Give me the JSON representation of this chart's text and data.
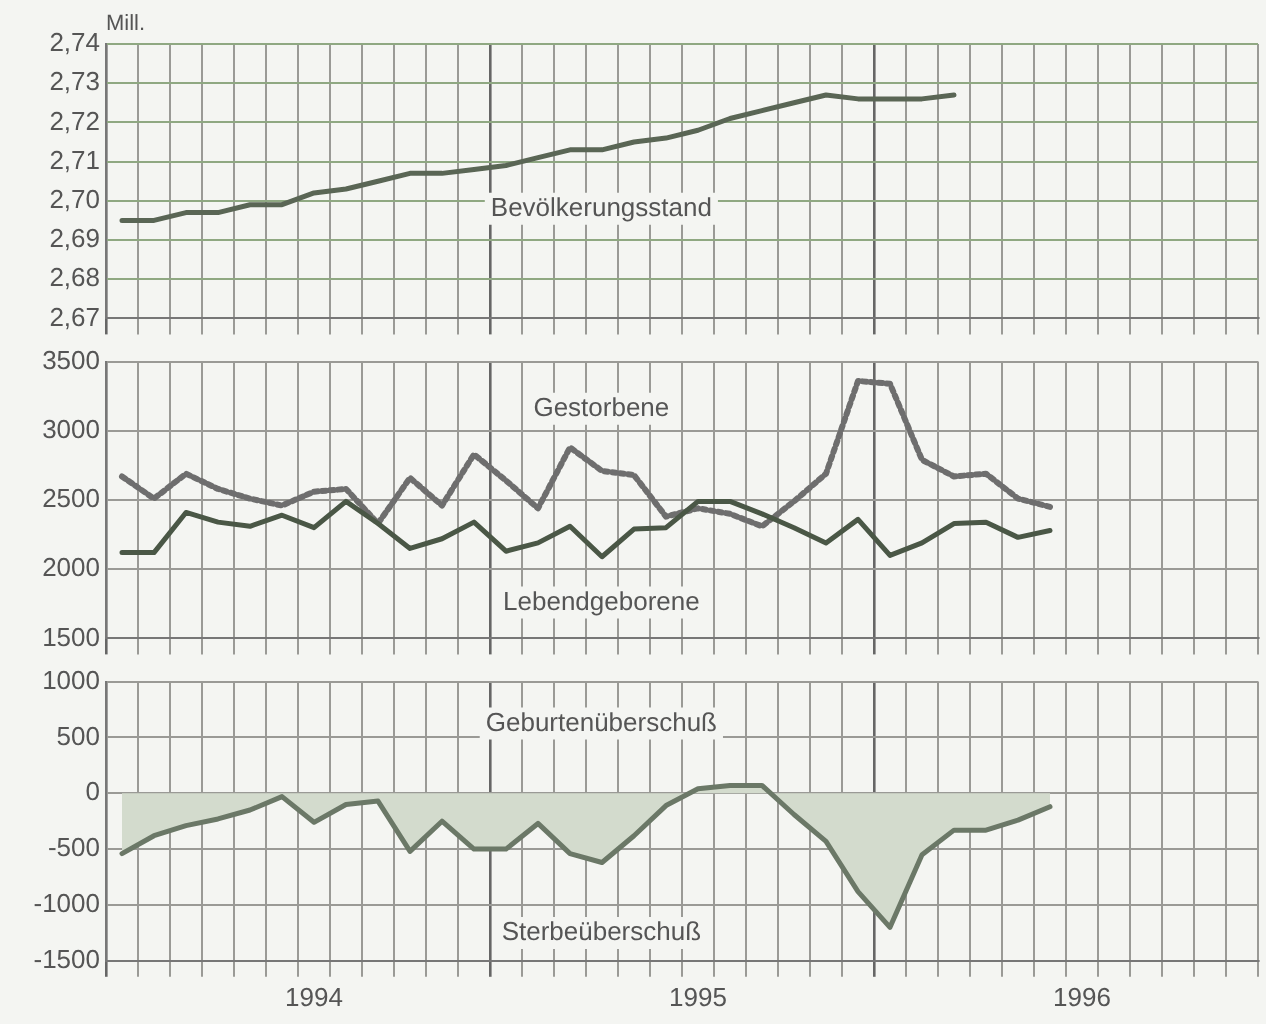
{
  "chart_data": [
    {
      "type": "line",
      "ylabel": "Mill.",
      "categories": [
        null,
        null,
        null,
        null,
        null,
        null,
        null,
        null,
        null,
        null,
        null,
        null,
        null,
        null,
        null,
        null,
        null,
        null,
        null,
        null,
        null,
        null,
        null,
        null,
        null,
        null,
        null,
        null,
        null,
        null,
        null,
        null,
        null,
        null,
        null,
        null
      ],
      "ylim": [
        2.67,
        2.74
      ],
      "yticks": [
        {
          "value": 2.67,
          "label": "2,67"
        },
        {
          "value": 2.68,
          "label": "2,68"
        },
        {
          "value": 2.69,
          "label": "2,69"
        },
        {
          "value": 2.7,
          "label": "2,70"
        },
        {
          "value": 2.71,
          "label": "2,71"
        },
        {
          "value": 2.72,
          "label": "2,72"
        },
        {
          "value": 2.73,
          "label": "2,73"
        },
        {
          "value": 2.74,
          "label": "2,74"
        }
      ],
      "grid": true,
      "legend": false,
      "marker": "none",
      "tick_labels": "y",
      "series": [
        {
          "name": "Bevölkerungsstand",
          "color": "#5a6655",
          "line_style": "solid",
          "values": [
            2.695,
            2.695,
            2.697,
            2.697,
            2.699,
            2.699,
            2.702,
            2.703,
            2.705,
            2.707,
            2.707,
            2.708,
            2.709,
            2.711,
            2.713,
            2.713,
            2.715,
            2.716,
            2.718,
            2.721,
            2.723,
            2.725,
            2.727,
            2.726,
            2.726,
            2.726,
            2.727,
            null,
            null,
            null,
            null,
            null,
            null,
            null,
            null,
            null
          ]
        }
      ]
    },
    {
      "type": "line",
      "categories": [
        null,
        null,
        null,
        null,
        null,
        null,
        null,
        null,
        null,
        null,
        null,
        null,
        null,
        null,
        null,
        null,
        null,
        null,
        null,
        null,
        null,
        null,
        null,
        null,
        null,
        null,
        null,
        null,
        null,
        null,
        null,
        null,
        null,
        null,
        null,
        null
      ],
      "ylim": [
        1500,
        3500
      ],
      "yticks": [
        1500,
        2000,
        2500,
        3000,
        3500
      ],
      "grid": true,
      "legend": false,
      "marker": "none",
      "tick_labels": "y",
      "series": [
        {
          "name": "Lebendgeborene",
          "color": "#4a5746",
          "line_style": "solid",
          "values": [
            2120,
            2120,
            2410,
            2340,
            2310,
            2390,
            2300,
            2490,
            2330,
            2150,
            2220,
            2340,
            2130,
            2190,
            2310,
            2090,
            2290,
            2300,
            2490,
            2490,
            2400,
            2300,
            2190,
            2360,
            2100,
            2190,
            2330,
            2340,
            2230,
            2280,
            null,
            null,
            null,
            null,
            null,
            null
          ]
        },
        {
          "name": "Gestorbene",
          "color": "#6e6e6e",
          "line_style": "dotted",
          "values": [
            2670,
            2510,
            2690,
            2580,
            2510,
            2460,
            2560,
            2580,
            2330,
            2660,
            2460,
            2830,
            2640,
            2440,
            2880,
            2710,
            2680,
            2380,
            2440,
            2400,
            2310,
            2490,
            2690,
            3360,
            3340,
            2790,
            2670,
            2690,
            2510,
            2450,
            null,
            null,
            null,
            null,
            null,
            null
          ]
        }
      ]
    },
    {
      "type": "area",
      "categories": [
        null,
        null,
        null,
        null,
        null,
        null,
        "1994",
        null,
        null,
        null,
        null,
        null,
        null,
        null,
        null,
        null,
        null,
        null,
        "1995",
        null,
        null,
        null,
        null,
        null,
        null,
        null,
        null,
        null,
        null,
        null,
        "1996",
        null,
        null,
        null,
        null,
        null
      ],
      "ylim": [
        -1500,
        1000
      ],
      "yticks": [
        -1500,
        -1000,
        -500,
        0,
        500,
        1000
      ],
      "grid": true,
      "legend": false,
      "marker": "none",
      "annotations": [
        "Geburtenüberschuß",
        "Sterbeüberschuß"
      ],
      "series": [
        {
          "color": "#6b7867",
          "values": [
            -540,
            -380,
            -290,
            -230,
            -150,
            -30,
            -260,
            -100,
            -70,
            -520,
            -250,
            -500,
            -500,
            -270,
            -540,
            -620,
            -380,
            -110,
            40,
            70,
            70,
            -190,
            -430,
            -880,
            -1200,
            -550,
            -330,
            -330,
            -240,
            -120,
            null,
            null,
            null,
            null,
            null,
            null
          ]
        }
      ]
    }
  ]
}
